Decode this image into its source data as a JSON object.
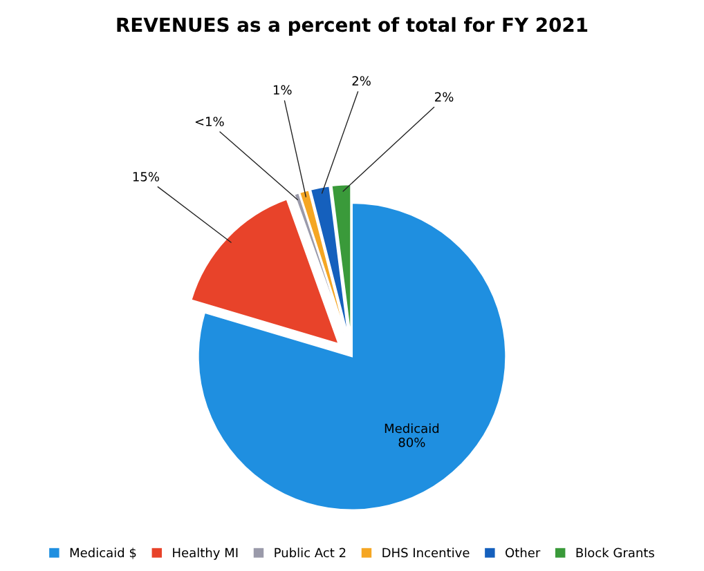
{
  "chart_data": {
    "type": "pie",
    "title": "REVENUES as a percent of total for FY 2021",
    "categories": [
      "Medicaid $",
      "Healthy MI",
      "Public Act 2",
      "DHS Incentive",
      "Other",
      "Block Grants"
    ],
    "values": [
      80,
      15,
      0.5,
      1,
      2,
      2
    ],
    "value_labels": [
      "Medicaid\n80%",
      "15%",
      "<1%",
      "1%",
      "2%",
      "2%"
    ],
    "colors": [
      "#1f8fe0",
      "#e8432a",
      "#9a9aaa",
      "#f5a623",
      "#1560bd",
      "#3a9a3a"
    ],
    "legend": "bottom"
  }
}
